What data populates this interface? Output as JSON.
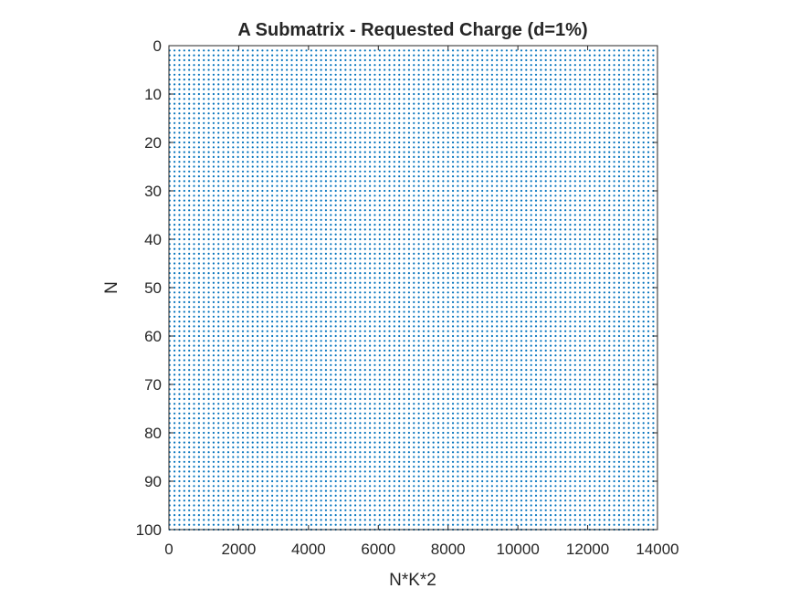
{
  "chart_data": {
    "type": "scatter",
    "title": "A Submatrix - Requested Charge (d=1%)",
    "xlabel": "N*K*2",
    "ylabel": "N",
    "xlim": [
      0,
      14000
    ],
    "ylim": [
      0,
      100
    ],
    "y_reversed": true,
    "x_ticks": [
      "0",
      "2000",
      "4000",
      "6000",
      "8000",
      "10000",
      "12000",
      "14000"
    ],
    "y_ticks": [
      "0",
      "10",
      "20",
      "30",
      "40",
      "50",
      "60",
      "70",
      "80",
      "90",
      "100"
    ],
    "marker_color": "#0072bd",
    "pattern": {
      "x_start": 20,
      "x_step": 140,
      "x_count": 100,
      "y_start": 1,
      "y_step": 1,
      "y_count": 100
    }
  }
}
